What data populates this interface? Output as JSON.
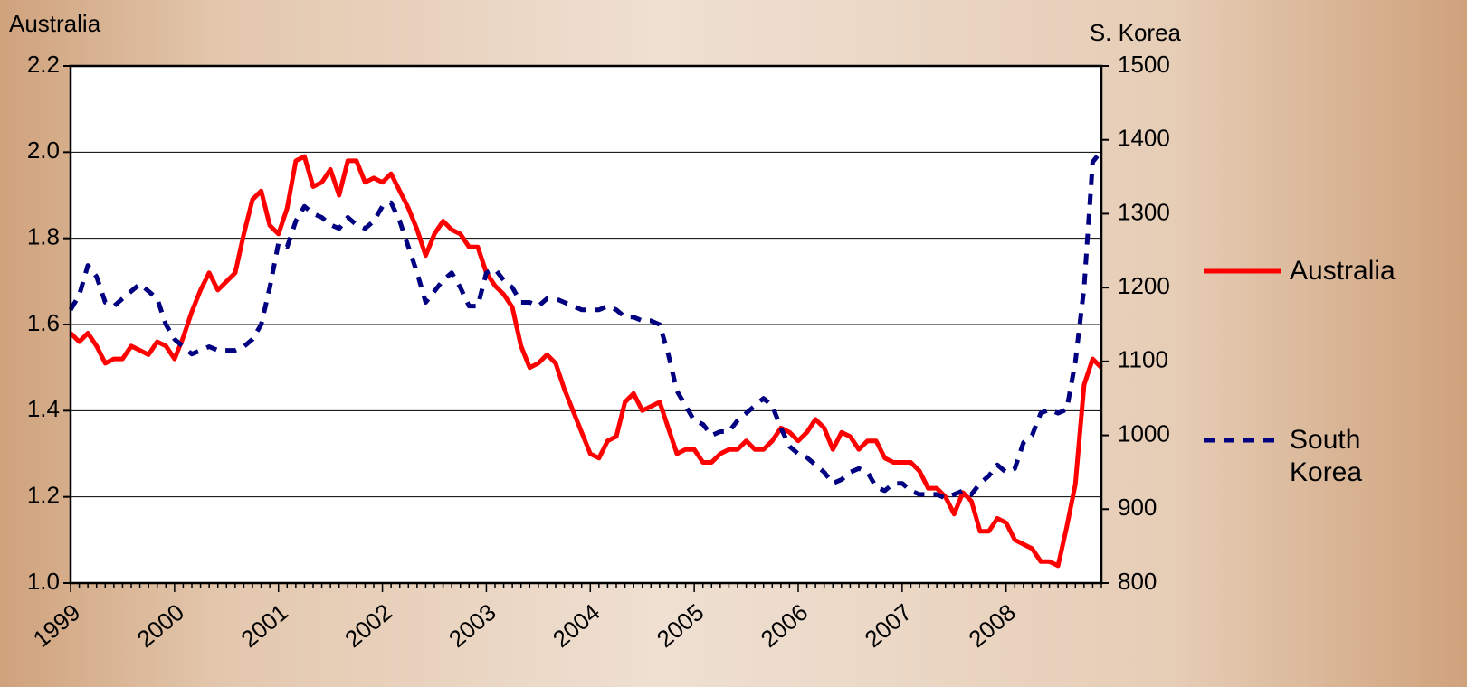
{
  "chart_data": {
    "type": "line",
    "y_label": "Australia",
    "y2_label": "S. Korea",
    "categories": [
      "1999",
      null,
      null,
      null,
      null,
      null,
      null,
      null,
      null,
      null,
      null,
      null,
      "2000",
      null,
      null,
      null,
      null,
      null,
      null,
      null,
      null,
      null,
      null,
      null,
      "2001",
      null,
      null,
      null,
      null,
      null,
      null,
      null,
      null,
      null,
      null,
      null,
      "2002",
      null,
      null,
      null,
      null,
      null,
      null,
      null,
      null,
      null,
      null,
      null,
      "2003",
      null,
      null,
      null,
      null,
      null,
      null,
      null,
      null,
      null,
      null,
      null,
      "2004",
      null,
      null,
      null,
      null,
      null,
      null,
      null,
      null,
      null,
      null,
      null,
      "2005",
      null,
      null,
      null,
      null,
      null,
      null,
      null,
      null,
      null,
      null,
      null,
      "2006",
      null,
      null,
      null,
      null,
      null,
      null,
      null,
      null,
      null,
      null,
      null,
      "2007",
      null,
      null,
      null,
      null,
      null,
      null,
      null,
      null,
      null,
      null,
      null,
      "2008",
      null,
      null,
      null,
      null,
      null,
      null,
      null,
      null,
      null,
      null,
      null
    ],
    "series": [
      {
        "name": "Australia",
        "color": "#ff0000",
        "dash": false,
        "axis": "y",
        "values": [
          1.58,
          1.56,
          1.58,
          1.55,
          1.51,
          1.52,
          1.52,
          1.55,
          1.54,
          1.53,
          1.56,
          1.55,
          1.52,
          1.57,
          1.63,
          1.68,
          1.72,
          1.68,
          1.7,
          1.72,
          1.81,
          1.89,
          1.91,
          1.83,
          1.81,
          1.87,
          1.98,
          1.99,
          1.92,
          1.93,
          1.96,
          1.9,
          1.98,
          1.98,
          1.93,
          1.94,
          1.93,
          1.95,
          1.91,
          1.87,
          1.82,
          1.76,
          1.81,
          1.84,
          1.82,
          1.81,
          1.78,
          1.78,
          1.72,
          1.69,
          1.67,
          1.64,
          1.55,
          1.5,
          1.51,
          1.53,
          1.51,
          1.45,
          1.4,
          1.35,
          1.3,
          1.29,
          1.33,
          1.34,
          1.42,
          1.44,
          1.4,
          1.41,
          1.42,
          1.36,
          1.3,
          1.31,
          1.31,
          1.28,
          1.28,
          1.3,
          1.31,
          1.31,
          1.33,
          1.31,
          1.31,
          1.33,
          1.36,
          1.35,
          1.33,
          1.35,
          1.38,
          1.36,
          1.31,
          1.35,
          1.34,
          1.31,
          1.33,
          1.33,
          1.29,
          1.28,
          1.28,
          1.28,
          1.26,
          1.22,
          1.22,
          1.2,
          1.16,
          1.21,
          1.19,
          1.12,
          1.12,
          1.15,
          1.14,
          1.1,
          1.09,
          1.08,
          1.05,
          1.05,
          1.04,
          1.13,
          1.23,
          1.46,
          1.52,
          1.5
        ]
      },
      {
        "name": "South Korea",
        "color": "#000080",
        "dash": true,
        "axis": "y2",
        "values": [
          1170,
          1190,
          1230,
          1215,
          1180,
          1175,
          1185,
          1195,
          1205,
          1195,
          1185,
          1150,
          1130,
          1120,
          1110,
          1115,
          1120,
          1115,
          1115,
          1115,
          1120,
          1130,
          1150,
          1200,
          1260,
          1255,
          1290,
          1310,
          1300,
          1295,
          1285,
          1280,
          1295,
          1285,
          1280,
          1290,
          1310,
          1315,
          1290,
          1255,
          1220,
          1180,
          1195,
          1210,
          1220,
          1200,
          1175,
          1175,
          1220,
          1225,
          1210,
          1200,
          1180,
          1180,
          1175,
          1185,
          1185,
          1180,
          1175,
          1170,
          1170,
          1170,
          1175,
          1170,
          1160,
          1160,
          1155,
          1155,
          1150,
          1110,
          1060,
          1040,
          1020,
          1015,
          1000,
          1005,
          1005,
          1020,
          1030,
          1040,
          1050,
          1040,
          1010,
          985,
          975,
          970,
          960,
          950,
          935,
          940,
          950,
          955,
          950,
          930,
          925,
          935,
          935,
          925,
          920,
          920,
          920,
          915,
          920,
          925,
          920,
          935,
          945,
          960,
          950,
          955,
          990,
          1000,
          1030,
          1035,
          1030,
          1035,
          1100,
          1200,
          1370,
          1385
        ]
      }
    ],
    "ylim": [
      1.0,
      2.2
    ],
    "yticks": [
      {
        "value": 1.0,
        "label": "1.0"
      },
      1.2,
      1.4,
      1.6,
      1.8,
      {
        "value": 2.0,
        "label": "2.0"
      },
      2.2
    ],
    "y2lim": [
      800,
      1500
    ],
    "y2ticks": [
      800,
      900,
      1000,
      1100,
      1200,
      1300,
      1400,
      1500
    ],
    "grid": true,
    "legend": "right"
  }
}
